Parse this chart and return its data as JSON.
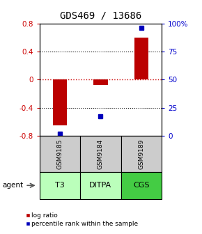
{
  "title": "GDS469 / 13686",
  "samples": [
    "GSM9185",
    "GSM9184",
    "GSM9189"
  ],
  "agents": [
    "T3",
    "DITPA",
    "CGS"
  ],
  "log_ratios": [
    -0.65,
    -0.08,
    0.6
  ],
  "percentile_ranks": [
    2,
    17,
    96
  ],
  "ylim_left": [
    -0.8,
    0.8
  ],
  "yticks_left": [
    -0.8,
    -0.4,
    0,
    0.4,
    0.8
  ],
  "ytick_labels_left": [
    "-0.8",
    "-0.4",
    "0",
    "0.4",
    "0.8"
  ],
  "ytick_labels_right": [
    "0",
    "25",
    "50",
    "75",
    "100%"
  ],
  "yticks_right_pct": [
    0,
    25,
    50,
    75,
    100
  ],
  "bar_color": "#bb0000",
  "dot_color": "#0000bb",
  "zero_line_color": "#cc0000",
  "bg_color": "#ffffff",
  "sample_box_color": "#cccccc",
  "agent_box_color_t3": "#bbffbb",
  "agent_box_color_ditpa": "#bbffbb",
  "agent_box_color_cgs": "#44cc44",
  "bar_width": 0.35,
  "title_fontsize": 10,
  "tick_fontsize": 7.5,
  "legend_fontsize": 6.5,
  "agent_fontsize": 8,
  "sample_fontsize": 6.5
}
